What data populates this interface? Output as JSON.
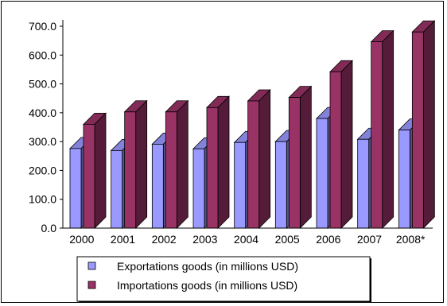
{
  "chart_data": {
    "type": "bar",
    "style": "3d-clustered",
    "categories": [
      "2000",
      "2001",
      "2002",
      "2003",
      "2004",
      "2005",
      "2006",
      "2007",
      "2008*"
    ],
    "series": [
      {
        "name": "Exportations goods (in millions USD)",
        "color": "#9999FF",
        "values": [
          276,
          269,
          291,
          275,
          297,
          300,
          380,
          308,
          340
        ]
      },
      {
        "name": "Importations goods (in millions USD)",
        "color": "#993366",
        "values": [
          360,
          403,
          403,
          418,
          441,
          453,
          542,
          646,
          680
        ]
      }
    ],
    "yticks": [
      "0.0",
      "100.0",
      "200.0",
      "300.0",
      "400.0",
      "500.0",
      "600.0",
      "700.0"
    ],
    "ylim": [
      0,
      700
    ],
    "grid": false,
    "legend_position": "bottom"
  }
}
